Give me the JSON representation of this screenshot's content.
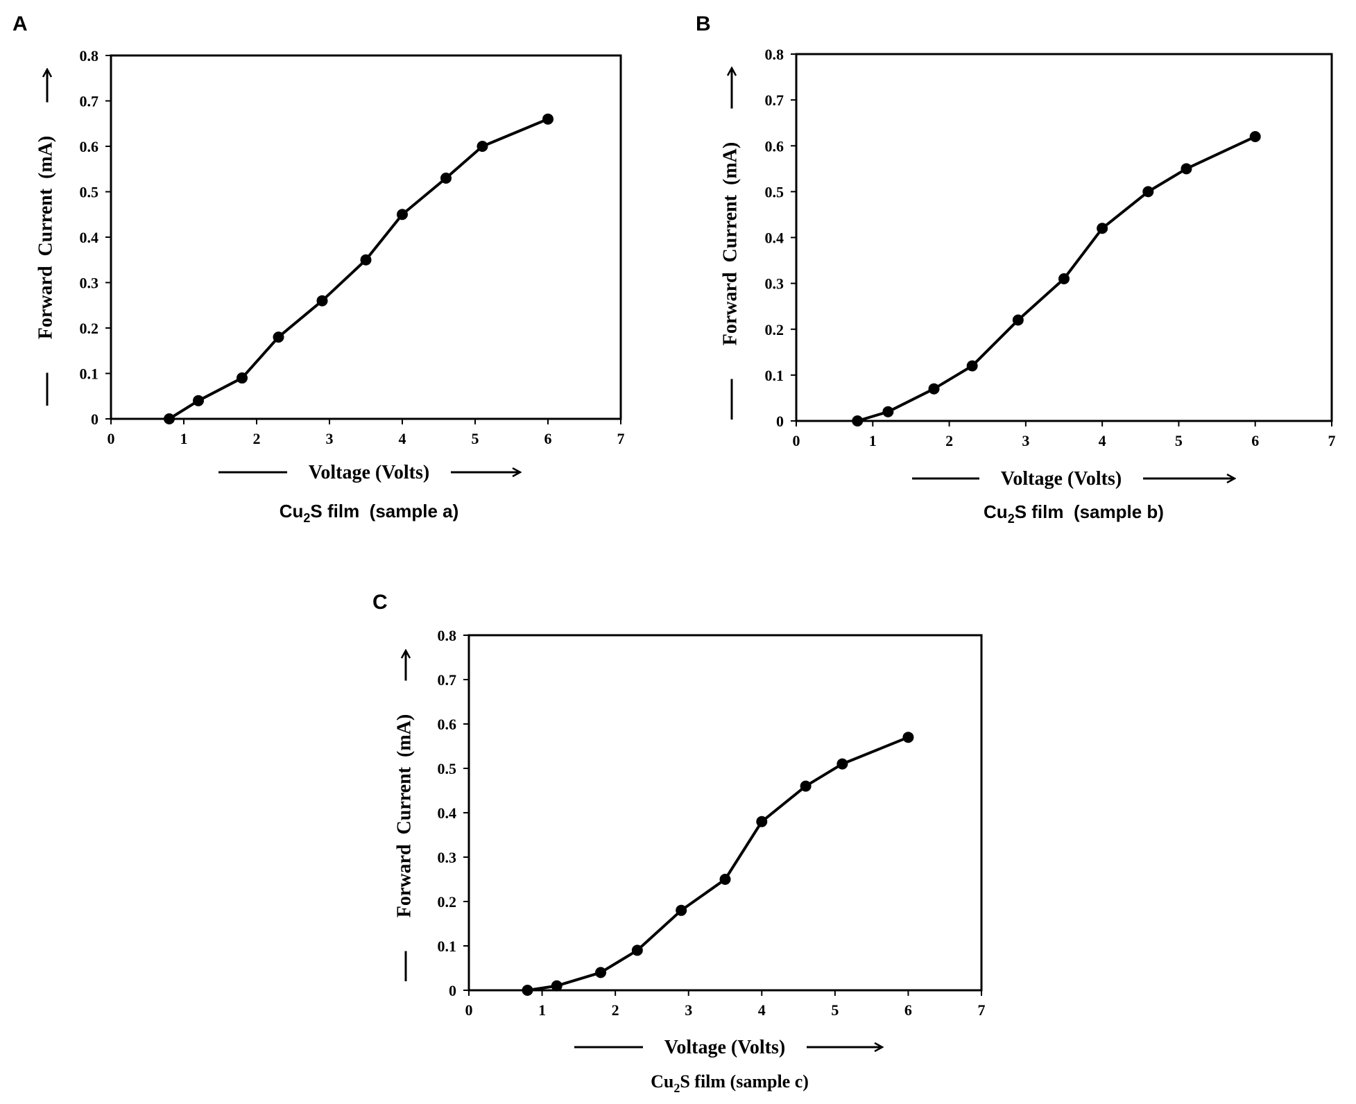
{
  "chart_data": [
    {
      "panel": "A",
      "type": "line",
      "x": [
        0.8,
        1.2,
        1.8,
        2.3,
        2.9,
        3.5,
        4.0,
        4.6,
        5.1,
        6.0
      ],
      "y": [
        0.0,
        0.04,
        0.09,
        0.18,
        0.26,
        0.35,
        0.45,
        0.53,
        0.6,
        0.66
      ],
      "xlabel": "Voltage (Volts)",
      "ylabel": "Forward  Current  (mA)",
      "caption_pre": "Cu",
      "caption_sub": "2",
      "caption_post": "S film  (sample a)",
      "xlim": [
        0,
        7
      ],
      "ylim": [
        0,
        0.8
      ],
      "xticks": [
        "0",
        "1",
        "2",
        "3",
        "4",
        "5",
        "6",
        "7"
      ],
      "yticks": [
        "0",
        "0.1",
        "0.2",
        "0.3",
        "0.4",
        "0.5",
        "0.6",
        "0.7",
        "0.8"
      ],
      "grid": false
    },
    {
      "panel": "B",
      "type": "line",
      "x": [
        0.8,
        1.2,
        1.8,
        2.3,
        2.9,
        3.5,
        4.0,
        4.6,
        5.1,
        6.0
      ],
      "y": [
        0.0,
        0.02,
        0.07,
        0.12,
        0.22,
        0.31,
        0.42,
        0.5,
        0.55,
        0.62
      ],
      "xlabel": "Voltage (Volts)",
      "ylabel": "Forward  Current  (mA)",
      "caption_pre": "Cu",
      "caption_sub": "2",
      "caption_post": "S film  (sample b)",
      "xlim": [
        0,
        7
      ],
      "ylim": [
        0,
        0.8
      ],
      "xticks": [
        "0",
        "1",
        "2",
        "3",
        "4",
        "5",
        "6",
        "7"
      ],
      "yticks": [
        "0",
        "0.1",
        "0.2",
        "0.3",
        "0.4",
        "0.5",
        "0.6",
        "0.7",
        "0.8"
      ],
      "grid": false
    },
    {
      "panel": "C",
      "type": "line",
      "x": [
        0.8,
        1.2,
        1.8,
        2.3,
        2.9,
        3.5,
        4.0,
        4.6,
        5.1,
        6.0
      ],
      "y": [
        0.0,
        0.01,
        0.04,
        0.09,
        0.18,
        0.25,
        0.38,
        0.46,
        0.51,
        0.57
      ],
      "xlabel": "Voltage (Volts)",
      "ylabel": "Forward  Current  (mA)",
      "caption_pre": "Cu",
      "caption_sub": "2",
      "caption_post": "S film (sample c)",
      "xlim": [
        0,
        7
      ],
      "ylim": [
        0,
        0.8
      ],
      "xticks": [
        "0",
        "1",
        "2",
        "3",
        "4",
        "5",
        "6",
        "7"
      ],
      "yticks": [
        "0",
        "0.1",
        "0.2",
        "0.3",
        "0.4",
        "0.5",
        "0.6",
        "0.7",
        "0.8"
      ],
      "grid": false
    }
  ]
}
